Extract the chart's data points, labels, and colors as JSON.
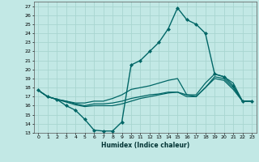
{
  "xlabel": "Humidex (Indice chaleur)",
  "xlim": [
    -0.5,
    23.5
  ],
  "ylim": [
    13,
    27.5
  ],
  "yticks": [
    13,
    14,
    15,
    16,
    17,
    18,
    19,
    20,
    21,
    22,
    23,
    24,
    25,
    26,
    27
  ],
  "xticks": [
    0,
    1,
    2,
    3,
    4,
    5,
    6,
    7,
    8,
    9,
    10,
    11,
    12,
    13,
    14,
    15,
    16,
    17,
    18,
    19,
    20,
    21,
    22,
    23
  ],
  "bg_color": "#c2e8e5",
  "grid_color": "#a8d5d0",
  "line_color": "#006666",
  "lines": [
    {
      "x": [
        0,
        1,
        2,
        3,
        4,
        5,
        6,
        7,
        8,
        9,
        10,
        11,
        12,
        13,
        14,
        15,
        16,
        17,
        18,
        19,
        20,
        21,
        22,
        23
      ],
      "y": [
        17.7,
        17.0,
        16.7,
        16.0,
        15.5,
        14.5,
        13.3,
        13.2,
        13.2,
        14.2,
        20.5,
        21.0,
        22.0,
        23.0,
        24.5,
        26.8,
        25.5,
        25.0,
        24.0,
        19.5,
        19.2,
        18.2,
        16.5,
        16.5
      ],
      "marker": "D",
      "markersize": 2.0,
      "lw": 1.0
    },
    {
      "x": [
        0,
        1,
        2,
        3,
        4,
        5,
        6,
        7,
        8,
        9,
        10,
        11,
        12,
        13,
        14,
        15,
        16,
        17,
        18,
        19,
        20,
        21,
        22,
        23
      ],
      "y": [
        17.7,
        17.0,
        16.7,
        16.5,
        16.3,
        16.3,
        16.5,
        16.5,
        16.8,
        17.2,
        17.8,
        18.0,
        18.2,
        18.5,
        18.8,
        19.0,
        17.2,
        17.2,
        18.5,
        19.5,
        19.2,
        18.5,
        16.5,
        16.5
      ],
      "marker": null,
      "markersize": 0,
      "lw": 0.9
    },
    {
      "x": [
        0,
        1,
        2,
        3,
        4,
        5,
        6,
        7,
        8,
        9,
        10,
        11,
        12,
        13,
        14,
        15,
        16,
        17,
        18,
        19,
        20,
        21,
        22,
        23
      ],
      "y": [
        17.7,
        17.0,
        16.7,
        16.5,
        16.2,
        16.0,
        16.2,
        16.2,
        16.3,
        16.5,
        16.8,
        17.0,
        17.2,
        17.3,
        17.5,
        17.5,
        17.2,
        17.0,
        18.0,
        19.2,
        19.0,
        18.0,
        16.5,
        16.5
      ],
      "marker": null,
      "markersize": 0,
      "lw": 0.9
    },
    {
      "x": [
        0,
        1,
        2,
        3,
        4,
        5,
        6,
        7,
        8,
        9,
        10,
        11,
        12,
        13,
        14,
        15,
        16,
        17,
        18,
        19,
        20,
        21,
        22,
        23
      ],
      "y": [
        17.7,
        17.0,
        16.7,
        16.4,
        16.1,
        15.9,
        16.0,
        16.0,
        16.0,
        16.2,
        16.5,
        16.8,
        17.0,
        17.2,
        17.4,
        17.5,
        17.0,
        17.0,
        18.0,
        19.0,
        18.8,
        17.8,
        16.5,
        16.5
      ],
      "marker": null,
      "markersize": 0,
      "lw": 0.9
    }
  ]
}
